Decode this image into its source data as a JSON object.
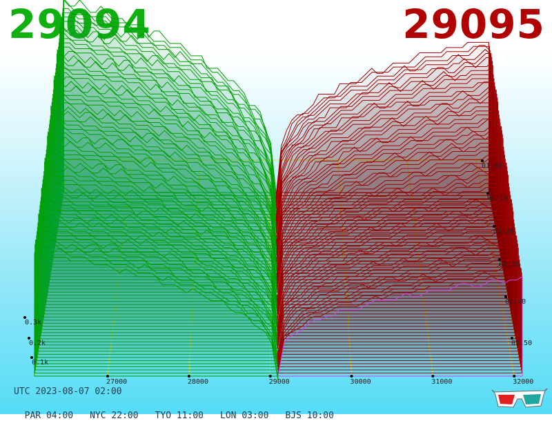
{
  "header": {
    "bid_price": "29094",
    "ask_price": "29095",
    "bid_color": "#10b010",
    "ask_color": "#b00000"
  },
  "footer": {
    "utc_label": "UTC 2023-08-07 02:00",
    "timezones": [
      {
        "label": "PAR 04:00"
      },
      {
        "label": "NYC 22:00"
      },
      {
        "label": "TYO 11:00"
      },
      {
        "label": "LON 03:00"
      },
      {
        "label": "BJS 10:00"
      }
    ]
  },
  "icons": {
    "glasses": "3d-glasses-icon"
  },
  "chart_data": {
    "type": "area",
    "x_axis": {
      "ticks": [
        27000,
        28000,
        29000,
        30000,
        31000,
        32000
      ],
      "labels": [
        "27000",
        "28000",
        "29000",
        "30000",
        "31000",
        "32000"
      ],
      "range": [
        26100,
        32100
      ]
    },
    "y_axis": {
      "ticks": [
        100,
        200,
        300
      ],
      "labels": [
        "0.1k",
        "0.2k",
        "0.3k"
      ]
    },
    "z_axis": {
      "labels": [
        "01:00",
        "01:10",
        "01:20",
        "01:30",
        "01:40",
        "01:50"
      ]
    },
    "mid_price": 29094.5,
    "bid_color": "#00a000",
    "ask_color": "#a00000",
    "latest_ask_color": "#d040f0",
    "grid_color": "#e8e830",
    "snapshot_count": 60
  }
}
